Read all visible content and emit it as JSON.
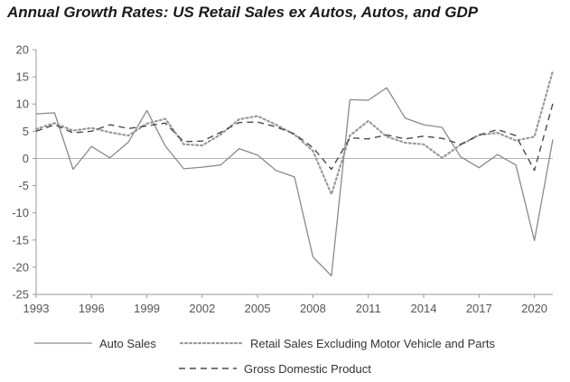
{
  "chart_data": {
    "type": "line",
    "title": "Annual Growth Rates: US Retail Sales ex Autos, Autos, and GDP",
    "xlabel": "",
    "ylabel": "",
    "xlim": [
      1993,
      2021
    ],
    "ylim": [
      -25,
      20
    ],
    "x_ticks": [
      "1993",
      "1996",
      "1999",
      "2002",
      "2005",
      "2008",
      "2011",
      "2014",
      "2017",
      "2020"
    ],
    "y_ticks": [
      "20",
      "15",
      "10",
      "5",
      "0",
      "-5",
      "-10",
      "-15",
      "-20",
      "-25"
    ],
    "x": [
      1993,
      1994,
      1995,
      1996,
      1997,
      1998,
      1999,
      2000,
      2001,
      2002,
      2003,
      2004,
      2005,
      2006,
      2007,
      2008,
      2009,
      2010,
      2011,
      2012,
      2013,
      2014,
      2015,
      2016,
      2017,
      2018,
      2019,
      2020,
      2021
    ],
    "series": [
      {
        "name": "Auto Sales",
        "style": "solid",
        "color": "#8a8a8a",
        "values": [
          8.2,
          8.4,
          -2.0,
          2.2,
          0.1,
          3.0,
          8.8,
          2.3,
          -1.9,
          -1.6,
          -1.2,
          1.8,
          0.6,
          -2.2,
          -3.4,
          -18.1,
          -21.6,
          10.8,
          10.7,
          13.0,
          7.4,
          6.2,
          5.7,
          0.3,
          -1.7,
          0.7,
          -1.2,
          -15.1,
          3.5
        ]
      },
      {
        "name": "Retail Sales Excluding Motor Vehicle and Parts",
        "style": "dotted",
        "color": "#9a9a9a",
        "values": [
          5.4,
          6.5,
          5.1,
          5.6,
          4.8,
          4.2,
          6.4,
          7.3,
          2.6,
          2.4,
          4.4,
          7.2,
          7.8,
          6.2,
          4.4,
          1.4,
          -6.6,
          4.2,
          6.9,
          4.0,
          2.9,
          2.6,
          0.1,
          2.5,
          4.3,
          4.7,
          3.3,
          4.0,
          16.1
        ]
      },
      {
        "name": "Gross Domestic Product",
        "style": "dashed",
        "color": "#4a4a4a",
        "values": [
          5.0,
          6.2,
          4.7,
          5.0,
          6.2,
          5.5,
          6.0,
          6.5,
          3.1,
          3.2,
          4.8,
          6.6,
          6.7,
          5.8,
          4.5,
          2.0,
          -2.0,
          3.8,
          3.6,
          4.3,
          3.6,
          4.1,
          3.7,
          2.6,
          4.3,
          5.3,
          4.2,
          -2.2,
          10.1
        ]
      }
    ],
    "legend": {
      "placement": "bottom",
      "entries": [
        "Auto Sales",
        "Retail Sales Excluding Motor Vehicle and Parts",
        "Gross Domestic Product"
      ]
    },
    "grid": false,
    "zero_line": true,
    "colors": {
      "axis": "#9a9a9a",
      "zero_line": "#b5b5b5"
    }
  }
}
